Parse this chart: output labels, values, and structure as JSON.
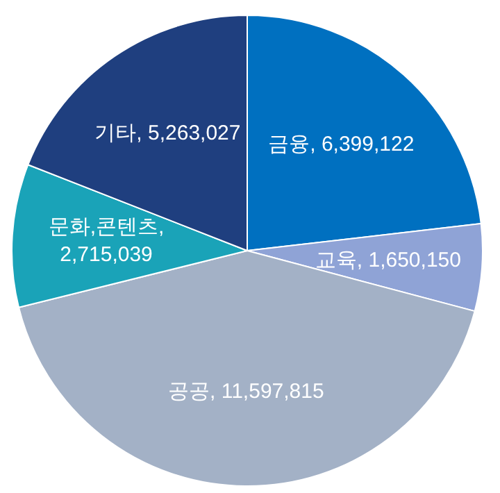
{
  "chart_data": {
    "type": "pie",
    "categories": [
      "금융",
      "교육",
      "공공",
      "문화,콘텐츠",
      "기타"
    ],
    "values": [
      6399122,
      1650150,
      11597815,
      2715039,
      5263027
    ],
    "colors": [
      "#0070c0",
      "#8fa3d6",
      "#a3b1c6",
      "#1aa3b8",
      "#1f3f7f"
    ],
    "value_labels": [
      ", 6,399,122",
      ", 1,650,150",
      ", 11,597,815",
      ", 2,715,039",
      ", 5,263,027"
    ],
    "legend": false
  }
}
